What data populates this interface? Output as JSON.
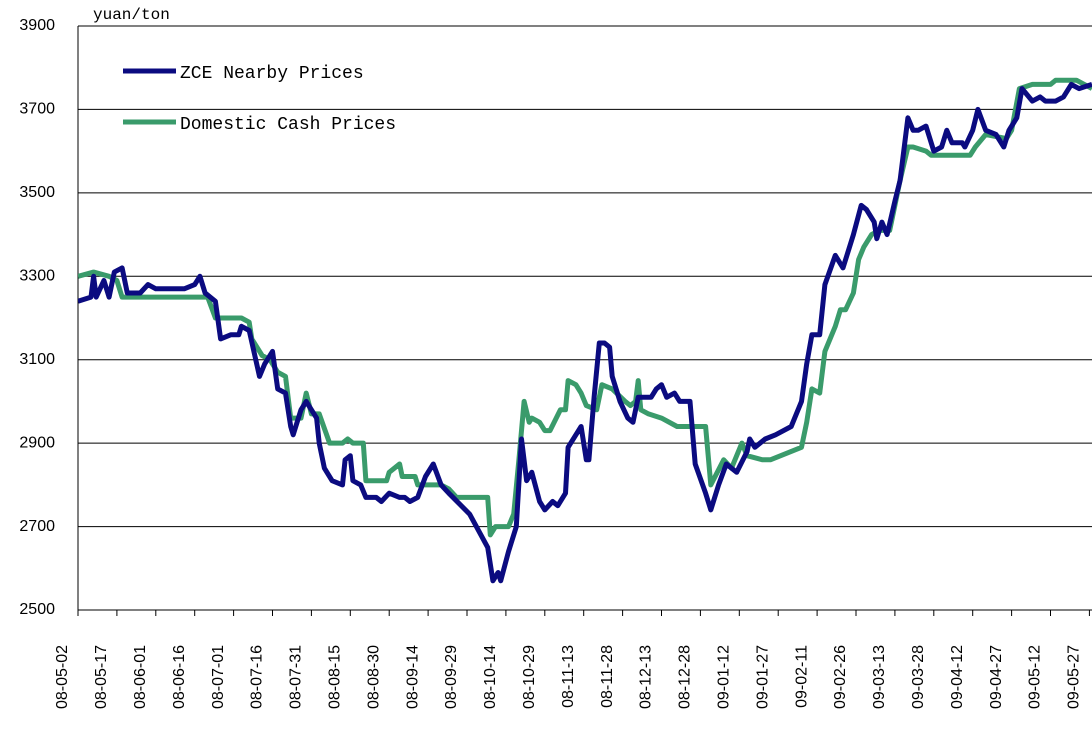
{
  "chart_data": {
    "type": "line",
    "y_unit_label": "yuan/ton",
    "ylim": [
      2500,
      3900
    ],
    "yticks": [
      2500,
      2700,
      2900,
      3100,
      3300,
      3500,
      3700,
      3900
    ],
    "xlim": [
      "08-05-02",
      "09-05-28"
    ],
    "xticks": [
      "08-05-02",
      "08-05-17",
      "08-06-01",
      "08-06-16",
      "08-07-01",
      "08-07-16",
      "08-07-31",
      "08-08-15",
      "08-08-30",
      "08-09-14",
      "08-09-29",
      "08-10-14",
      "08-10-29",
      "08-11-13",
      "08-11-28",
      "08-12-13",
      "08-12-28",
      "09-01-12",
      "09-01-27",
      "09-02-11",
      "09-02-26",
      "09-03-13",
      "09-03-28",
      "09-04-12",
      "09-04-27",
      "09-05-12",
      "09-05-27"
    ],
    "grid": true,
    "legend": "upper left",
    "series": [
      {
        "name": "ZCE Nearby Prices",
        "color": "#0b0b80",
        "x": [
          "08-05-02",
          "08-05-07",
          "08-05-08",
          "08-05-09",
          "08-05-12",
          "08-05-14",
          "08-05-16",
          "08-05-19",
          "08-05-21",
          "08-05-26",
          "08-05-29",
          "08-06-01",
          "08-06-07",
          "08-06-12",
          "08-06-16",
          "08-06-18",
          "08-06-20",
          "08-06-24",
          "08-06-26",
          "08-06-30",
          "08-07-03",
          "08-07-04",
          "08-07-07",
          "08-07-11",
          "08-07-13",
          "08-07-16",
          "08-07-18",
          "08-07-21",
          "08-07-23",
          "08-07-24",
          "08-07-27",
          "08-07-29",
          "08-08-02",
          "08-08-03",
          "08-08-05",
          "08-08-08",
          "08-08-12",
          "08-08-13",
          "08-08-15",
          "08-08-16",
          "08-08-19",
          "08-08-21",
          "08-08-25",
          "08-08-27",
          "08-08-30",
          "08-09-03",
          "08-09-05",
          "08-09-07",
          "08-09-10",
          "08-09-13",
          "08-09-16",
          "08-09-19",
          "08-09-22",
          "08-09-30",
          "08-10-07",
          "08-10-09",
          "08-10-11",
          "08-10-12",
          "08-10-15",
          "08-10-16",
          "08-10-18",
          "08-10-20",
          "08-10-22",
          "08-10-24",
          "08-10-27",
          "08-10-29",
          "08-11-01",
          "08-11-03",
          "08-11-06",
          "08-11-07",
          "08-11-10",
          "08-11-12",
          "08-11-14",
          "08-11-15",
          "08-11-17",
          "08-11-19",
          "08-11-21",
          "08-11-23",
          "08-11-24",
          "08-11-27",
          "08-11-30",
          "08-12-02",
          "08-12-04",
          "08-12-09",
          "08-12-11",
          "08-12-13",
          "08-12-15",
          "08-12-18",
          "08-12-20",
          "08-12-24",
          "08-12-26",
          "08-12-30",
          "09-01-01",
          "09-01-04",
          "09-01-07",
          "09-01-11",
          "09-01-15",
          "09-01-16",
          "09-01-18",
          "09-01-22",
          "09-01-26",
          "09-02-01",
          "09-02-05",
          "09-02-07",
          "09-02-09",
          "09-02-12",
          "09-02-14",
          "09-02-18",
          "09-02-21",
          "09-02-25",
          "09-02-28",
          "09-03-02",
          "09-03-05",
          "09-03-06",
          "09-03-08",
          "09-03-10",
          "09-03-13",
          "09-03-15",
          "09-03-18",
          "09-03-20",
          "09-03-22",
          "09-03-25",
          "09-03-28",
          "09-03-31",
          "09-04-02",
          "09-04-04",
          "09-04-08",
          "09-04-09",
          "09-04-12",
          "09-04-14",
          "09-04-17",
          "09-04-21",
          "09-04-24",
          "09-04-26",
          "09-04-29",
          "09-05-01",
          "09-05-05",
          "09-05-08",
          "09-05-10",
          "09-05-14",
          "09-05-17",
          "09-05-20",
          "09-05-23",
          "09-05-28"
        ],
        "values": [
          3240,
          3250,
          3300,
          3250,
          3290,
          3250,
          3310,
          3320,
          3260,
          3260,
          3280,
          3270,
          3270,
          3270,
          3280,
          3300,
          3260,
          3240,
          3150,
          3160,
          3160,
          3180,
          3170,
          3060,
          3090,
          3120,
          3030,
          3020,
          2940,
          2920,
          2980,
          3000,
          2960,
          2900,
          2840,
          2810,
          2800,
          2860,
          2870,
          2810,
          2800,
          2770,
          2770,
          2760,
          2780,
          2770,
          2770,
          2760,
          2770,
          2820,
          2850,
          2800,
          2780,
          2730,
          2650,
          2570,
          2590,
          2570,
          2640,
          2660,
          2700,
          2910,
          2810,
          2830,
          2760,
          2740,
          2760,
          2750,
          2780,
          2890,
          2920,
          2940,
          2860,
          2860,
          3010,
          3140,
          3140,
          3130,
          3060,
          3000,
          2960,
          2950,
          3010,
          3010,
          3030,
          3040,
          3010,
          3020,
          3000,
          3000,
          2850,
          2780,
          2740,
          2800,
          2850,
          2830,
          2880,
          2910,
          2890,
          2910,
          2920,
          2940,
          3000,
          3090,
          3160,
          3160,
          3280,
          3350,
          3320,
          3400,
          3470,
          3460,
          3430,
          3390,
          3430,
          3400,
          3480,
          3530,
          3680,
          3650,
          3650,
          3660,
          3600,
          3610,
          3650,
          3620,
          3620,
          3610,
          3650,
          3700,
          3650,
          3640,
          3610,
          3650,
          3680,
          3750,
          3720,
          3730,
          3720,
          3720,
          3730,
          3760,
          3750,
          3760
        ]
      },
      {
        "name": "Domestic Cash Prices",
        "color": "#3a9b6b",
        "x": [
          "08-05-02",
          "08-05-08",
          "08-05-14",
          "08-05-17",
          "08-05-19",
          "08-06-21",
          "08-06-24",
          "08-07-04",
          "08-07-07",
          "08-07-08",
          "08-07-12",
          "08-07-15",
          "08-07-18",
          "08-07-21",
          "08-07-23",
          "08-07-27",
          "08-07-29",
          "08-07-31",
          "08-08-03",
          "08-08-07",
          "08-08-12",
          "08-08-14",
          "08-08-16",
          "08-08-20",
          "08-08-21",
          "08-08-29",
          "08-08-30",
          "08-09-03",
          "08-09-04",
          "08-09-09",
          "08-09-10",
          "08-09-19",
          "08-09-22",
          "08-09-25",
          "08-10-07",
          "08-10-08",
          "08-10-10",
          "08-10-15",
          "08-10-17",
          "08-10-19",
          "08-10-21",
          "08-10-23",
          "08-10-24",
          "08-10-27",
          "08-10-29",
          "08-10-31",
          "08-11-04",
          "08-11-06",
          "08-11-07",
          "08-11-10",
          "08-11-12",
          "08-11-14",
          "08-11-18",
          "08-11-20",
          "08-11-24",
          "08-11-29",
          "08-12-01",
          "08-12-03",
          "08-12-04",
          "08-12-05",
          "08-12-08",
          "08-12-13",
          "08-12-19",
          "08-12-30",
          "09-01-01",
          "09-01-06",
          "09-01-09",
          "09-01-13",
          "09-01-15",
          "09-01-21",
          "09-01-24",
          "09-02-05",
          "09-02-07",
          "09-02-09",
          "09-02-12",
          "09-02-14",
          "09-02-18",
          "09-02-20",
          "09-02-22",
          "09-02-25",
          "09-02-27",
          "09-03-01",
          "09-03-04",
          "09-03-07",
          "09-03-11",
          "09-03-13",
          "09-03-15",
          "09-03-18",
          "09-03-20",
          "09-03-25",
          "09-03-27",
          "09-04-11",
          "09-04-13",
          "09-04-17",
          "09-04-25",
          "09-04-27",
          "09-04-30",
          "09-05-05",
          "09-05-12",
          "09-05-14",
          "09-05-22",
          "09-05-28"
        ],
        "values": [
          3300,
          3310,
          3300,
          3290,
          3250,
          3250,
          3200,
          3200,
          3190,
          3150,
          3110,
          3100,
          3070,
          3060,
          2960,
          2960,
          3020,
          2970,
          2970,
          2900,
          2900,
          2910,
          2900,
          2900,
          2810,
          2810,
          2830,
          2850,
          2820,
          2820,
          2800,
          2800,
          2790,
          2770,
          2770,
          2680,
          2700,
          2700,
          2730,
          2860,
          3000,
          2950,
          2960,
          2950,
          2930,
          2930,
          2980,
          2980,
          3050,
          3040,
          3020,
          2990,
          2980,
          3040,
          3030,
          3000,
          2990,
          3000,
          3050,
          2980,
          2970,
          2960,
          2940,
          2940,
          2800,
          2860,
          2840,
          2900,
          2870,
          2860,
          2860,
          2890,
          2950,
          3030,
          3020,
          3120,
          3180,
          3220,
          3220,
          3260,
          3340,
          3370,
          3400,
          3410,
          3410,
          3470,
          3530,
          3610,
          3610,
          3600,
          3590,
          3590,
          3610,
          3640,
          3630,
          3650,
          3750,
          3760,
          3760,
          3770,
          3770,
          3750
        ]
      }
    ]
  }
}
